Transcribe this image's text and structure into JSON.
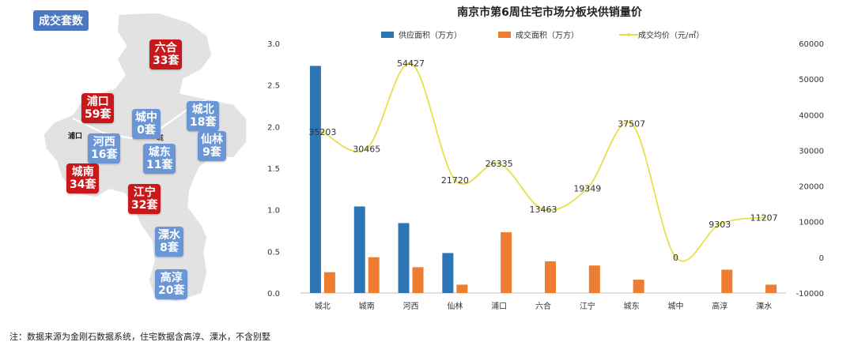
{
  "map": {
    "badge": "成交套数",
    "labels": {
      "pukou": "浦口",
      "center": "城"
    },
    "districts": [
      {
        "key": "liuhe",
        "name": "六合",
        "count": "33套",
        "color": "red"
      },
      {
        "key": "pukou",
        "name": "浦口",
        "count": "59套",
        "color": "red"
      },
      {
        "key": "chengzhong",
        "name": "城中",
        "count": "0套",
        "color": "blue"
      },
      {
        "key": "chengbei",
        "name": "城北",
        "count": "18套",
        "color": "blue"
      },
      {
        "key": "hexi",
        "name": "河西",
        "count": "16套",
        "color": "blue"
      },
      {
        "key": "xianlin",
        "name": "仙林",
        "count": "9套",
        "color": "blue"
      },
      {
        "key": "chengdong",
        "name": "城东",
        "count": "11套",
        "color": "blue"
      },
      {
        "key": "chengnan",
        "name": "城南",
        "count": "34套",
        "color": "red"
      },
      {
        "key": "jiangning",
        "name": "江宁",
        "count": "32套",
        "color": "red"
      },
      {
        "key": "lishui",
        "name": "溧水",
        "count": "8套",
        "color": "blue"
      },
      {
        "key": "gaochun",
        "name": "高淳",
        "count": "20套",
        "color": "blue"
      }
    ]
  },
  "note": "注：数据来源为金刚石数据系统，住宅数据含高淳、溧水，不含别墅",
  "chart_data": {
    "type": "bar",
    "title": "南京市第6周住宅市场分板块供销量价",
    "categories": [
      "城北",
      "城南",
      "河西",
      "仙林",
      "浦口",
      "六合",
      "江宁",
      "城东",
      "城中",
      "高淳",
      "溧水"
    ],
    "series": [
      {
        "name": "供应面积（万方）",
        "type": "bar",
        "axis": "left",
        "color": "#2e75b6",
        "values": [
          2.73,
          1.04,
          0.84,
          0.48,
          0,
          0,
          0,
          0,
          0,
          0,
          0
        ]
      },
      {
        "name": "成交面积（万方）",
        "type": "bar",
        "axis": "left",
        "color": "#ed7d31",
        "values": [
          0.25,
          0.43,
          0.31,
          0.1,
          0.73,
          0.38,
          0.33,
          0.16,
          0,
          0.28,
          0.1
        ]
      },
      {
        "name": "成交均价（元/㎡）",
        "type": "line",
        "axis": "right",
        "color": "#e8df4a",
        "values": [
          35203,
          30465,
          54427,
          21720,
          26335,
          13463,
          19349,
          37507,
          0,
          9303,
          11207
        ],
        "labels": [
          "35203",
          "30465",
          "54427",
          "21720",
          "26335",
          "13463",
          "19349",
          "37507",
          "0",
          "9303",
          "11207"
        ]
      }
    ],
    "y_left": {
      "min": 0,
      "max": 3,
      "ticks": [
        "0.0",
        "0.5",
        "1.0",
        "1.5",
        "2.0",
        "2.5",
        "3.0"
      ]
    },
    "y_right": {
      "min": -10000,
      "max": 60000,
      "ticks": [
        "-10000",
        "0",
        "10000",
        "20000",
        "30000",
        "40000",
        "50000",
        "60000"
      ]
    },
    "legend_position": "top",
    "grid": false
  }
}
